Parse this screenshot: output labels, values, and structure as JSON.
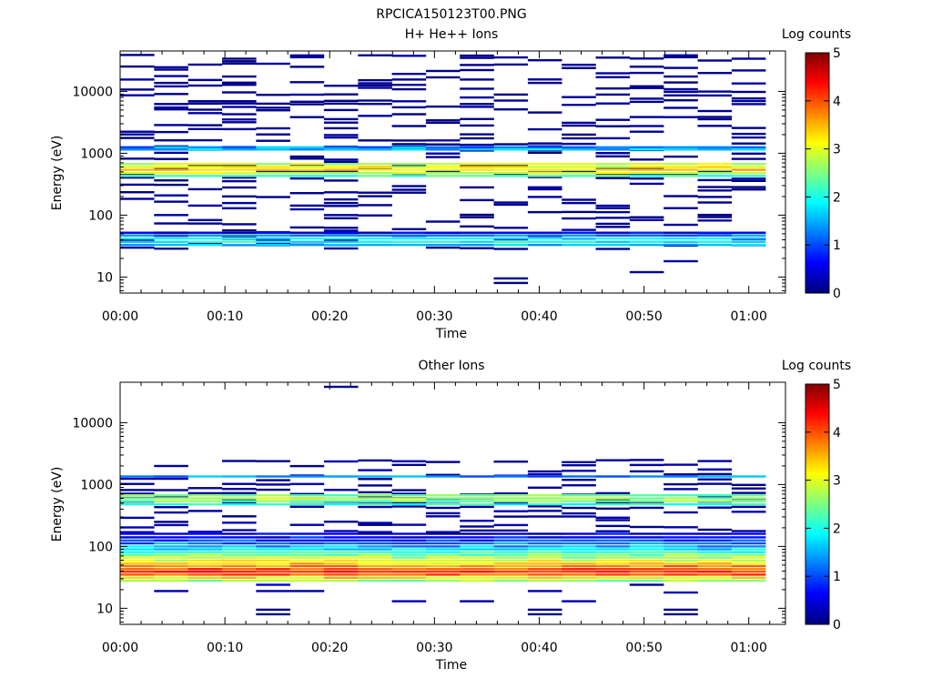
{
  "figure": {
    "title": "RPCICA150123T00.PNG"
  },
  "chart_data": [
    {
      "type": "heatmap",
      "title": "H+ He++ Ions",
      "xlabel": "Time",
      "ylabel": "Energy (eV)",
      "y_scale": "log",
      "ylim": [
        5.5,
        45000
      ],
      "xlim": [
        0,
        63.5
      ],
      "x_ticks": [
        {
          "v": 0,
          "label": "00:00"
        },
        {
          "v": 10,
          "label": "00:10"
        },
        {
          "v": 20,
          "label": "00:20"
        },
        {
          "v": 30,
          "label": "00:30"
        },
        {
          "v": 40,
          "label": "00:40"
        },
        {
          "v": 50,
          "label": "00:50"
        },
        {
          "v": 60,
          "label": "01:00"
        }
      ],
      "y_ticks": [
        {
          "v": 10,
          "label": "10"
        },
        {
          "v": 100,
          "label": "100"
        },
        {
          "v": 1000,
          "label": "1000"
        },
        {
          "v": 10000,
          "label": "10000"
        }
      ],
      "time_bin_minutes": 3.2,
      "columns": 19,
      "colorbar": {
        "label": "Log counts",
        "min": 0,
        "max": 5,
        "ticks": [
          "0",
          "1",
          "2",
          "3",
          "4",
          "5"
        ]
      },
      "colormap": [
        "#00007f",
        "#0000ff",
        "#007fff",
        "#00ffff",
        "#7fff7f",
        "#ffff00",
        "#ff7f00",
        "#ff0000",
        "#7f0000"
      ],
      "bands": [
        {
          "e": 33,
          "v": 1.55,
          "j": 0.25
        },
        {
          "e": 37,
          "v": 1.9,
          "j": 0.3
        },
        {
          "e": 42,
          "v": 1.8,
          "j": 0.3
        },
        {
          "e": 47,
          "v": 1.2,
          "j": 0.3
        },
        {
          "e": 52,
          "v": 0.5,
          "j": 0.3
        },
        {
          "e": 430,
          "v": 2.2,
          "j": 0.3
        },
        {
          "e": 480,
          "v": 2.9,
          "j": 0.3
        },
        {
          "e": 540,
          "v": 3.3,
          "j": 0.35
        },
        {
          "e": 600,
          "v": 3.1,
          "j": 0.35
        },
        {
          "e": 670,
          "v": 2.8,
          "j": 0.3
        },
        {
          "e": 1150,
          "v": 1.6,
          "j": 0.4
        },
        {
          "e": 1250,
          "v": 1.3,
          "j": 0.4
        }
      ],
      "sparse": {
        "emin": 28,
        "emax": 42000,
        "rows": 64,
        "p": 0.27,
        "v": 0.2
      },
      "extra_cells": [
        {
          "c": 11,
          "e": 8,
          "v": 0.05
        },
        {
          "c": 11,
          "e": 9.5,
          "v": 0.05
        },
        {
          "c": 15,
          "e": 12,
          "v": 0.1
        },
        {
          "c": 16,
          "e": 18,
          "v": 0.15
        }
      ]
    },
    {
      "type": "heatmap",
      "title": "Other Ions",
      "xlabel": "Time",
      "ylabel": "Energy (eV)",
      "y_scale": "log",
      "ylim": [
        5.5,
        45000
      ],
      "xlim": [
        0,
        63.5
      ],
      "x_ticks": [
        {
          "v": 0,
          "label": "00:00"
        },
        {
          "v": 10,
          "label": "00:10"
        },
        {
          "v": 20,
          "label": "00:20"
        },
        {
          "v": 30,
          "label": "00:30"
        },
        {
          "v": 40,
          "label": "00:40"
        },
        {
          "v": 50,
          "label": "00:50"
        },
        {
          "v": 60,
          "label": "01:00"
        }
      ],
      "y_ticks": [
        {
          "v": 10,
          "label": "10"
        },
        {
          "v": 100,
          "label": "100"
        },
        {
          "v": 1000,
          "label": "1000"
        },
        {
          "v": 10000,
          "label": "10000"
        }
      ],
      "time_bin_minutes": 3.2,
      "columns": 19,
      "colorbar": {
        "label": "Log counts",
        "min": 0,
        "max": 5,
        "ticks": [
          "0",
          "1",
          "2",
          "3",
          "4",
          "5"
        ]
      },
      "colormap": [
        "#00007f",
        "#0000ff",
        "#007fff",
        "#00ffff",
        "#7fff7f",
        "#ffff00",
        "#ff7f00",
        "#ff0000",
        "#7f0000"
      ],
      "bands": [
        {
          "e": 28,
          "v": 2.6,
          "j": 0.3
        },
        {
          "e": 31,
          "v": 3.3,
          "j": 0.3
        },
        {
          "e": 35,
          "v": 3.9,
          "j": 0.3
        },
        {
          "e": 39,
          "v": 4.15,
          "j": 0.3
        },
        {
          "e": 43,
          "v": 4.0,
          "j": 0.3
        },
        {
          "e": 48,
          "v": 3.7,
          "j": 0.3
        },
        {
          "e": 53,
          "v": 3.3,
          "j": 0.35
        },
        {
          "e": 59,
          "v": 3.0,
          "j": 0.35
        },
        {
          "e": 66,
          "v": 2.7,
          "j": 0.35
        },
        {
          "e": 73,
          "v": 2.4,
          "j": 0.35
        },
        {
          "e": 81,
          "v": 2.1,
          "j": 0.4
        },
        {
          "e": 90,
          "v": 1.8,
          "j": 0.4
        },
        {
          "e": 100,
          "v": 1.5,
          "j": 0.4
        },
        {
          "e": 112,
          "v": 1.2,
          "j": 0.4
        },
        {
          "e": 125,
          "v": 0.9,
          "j": 0.4
        },
        {
          "e": 140,
          "v": 0.6,
          "j": 0.4
        },
        {
          "e": 160,
          "v": 0.4,
          "j": 0.4
        },
        {
          "e": 480,
          "v": 2.0,
          "j": 0.3
        },
        {
          "e": 540,
          "v": 2.5,
          "j": 0.35
        },
        {
          "e": 600,
          "v": 2.7,
          "j": 0.35
        },
        {
          "e": 670,
          "v": 2.4,
          "j": 0.3
        },
        {
          "e": 1350,
          "v": 1.3,
          "j": 0.4
        }
      ],
      "sparse": {
        "emin": 170,
        "emax": 2700,
        "rows": 16,
        "p": 0.4,
        "v": 0.3
      },
      "extra_cells": [
        {
          "c": 1,
          "e": 19,
          "v": 0.2
        },
        {
          "c": 4,
          "e": 24,
          "v": 0.5
        },
        {
          "c": 4,
          "e": 8,
          "v": 0.05
        },
        {
          "c": 4,
          "e": 9.5,
          "v": 0.05
        },
        {
          "c": 4,
          "e": 19,
          "v": 0.2
        },
        {
          "c": 5,
          "e": 19,
          "v": 0.15
        },
        {
          "c": 6,
          "e": 38000,
          "v": 0.1
        },
        {
          "c": 8,
          "e": 13,
          "v": 0.3
        },
        {
          "c": 10,
          "e": 13,
          "v": 0.2
        },
        {
          "c": 12,
          "e": 8,
          "v": 0.05
        },
        {
          "c": 12,
          "e": 9.5,
          "v": 0.05
        },
        {
          "c": 12,
          "e": 19,
          "v": 0.2
        },
        {
          "c": 13,
          "e": 13,
          "v": 0.25
        },
        {
          "c": 16,
          "e": 8,
          "v": 0.05
        },
        {
          "c": 16,
          "e": 9.5,
          "v": 0.05
        },
        {
          "c": 16,
          "e": 18,
          "v": 0.3
        },
        {
          "c": 15,
          "e": 24,
          "v": 0.1
        }
      ]
    }
  ]
}
